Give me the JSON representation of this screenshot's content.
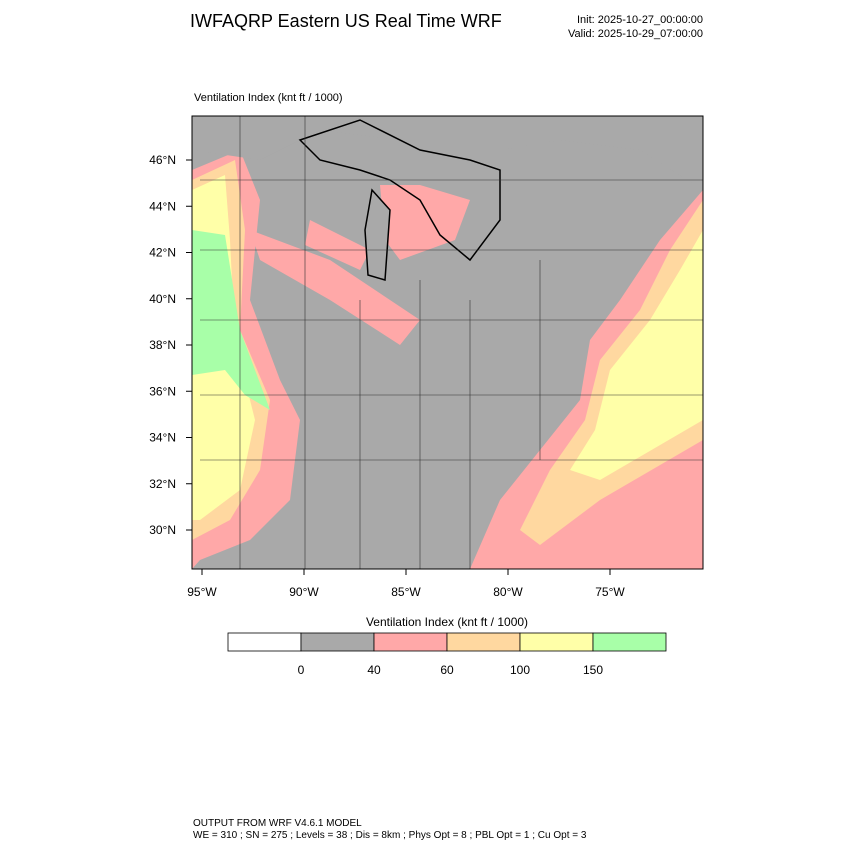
{
  "header": {
    "title": "IWFAQRP Eastern US Real Time WRF",
    "init": "Init: 2025-10-27_00:00:00",
    "valid": "Valid: 2025-10-29_07:00:00"
  },
  "map": {
    "subtitle": "Ventilation Index   (knt ft / 1000)",
    "lat_labels": [
      "46°N",
      "44°N",
      "42°N",
      "40°N",
      "38°N",
      "36°N",
      "34°N",
      "32°N",
      "30°N"
    ],
    "lon_labels": [
      "95°W",
      "90°W",
      "85°W",
      "80°W",
      "75°W"
    ]
  },
  "colorbar": {
    "title": "Ventilation Index  (knt ft / 1000)",
    "colors": [
      "#ffffff",
      "#a9a9a9",
      "#ffa8a8",
      "#ffd8a0",
      "#ffffa8",
      "#a8ffa8"
    ],
    "labels": [
      0,
      40,
      60,
      100,
      150
    ]
  },
  "footer": {
    "line1": "OUTPUT FROM WRF V4.6.1 MODEL",
    "line2": "WE = 310 ; SN = 275 ; Levels = 38 ; Dis = 8km ; Phys Opt = 8 ; PBL Opt = 1 ; Cu Opt = 3"
  }
}
